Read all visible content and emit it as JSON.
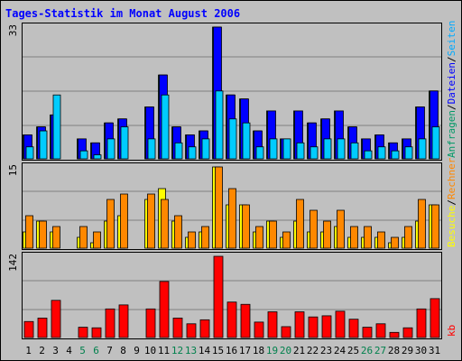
{
  "chart_data": {
    "type": "bar",
    "title": "Tages-Statistik im Monat August 2006",
    "days": [
      "1",
      "2",
      "3",
      "4",
      "5",
      "6",
      "7",
      "8",
      "9",
      "10",
      "11",
      "12",
      "13",
      "14",
      "15",
      "16",
      "17",
      "18",
      "19",
      "20",
      "21",
      "22",
      "23",
      "24",
      "25",
      "26",
      "27",
      "28",
      "29",
      "30",
      "31"
    ],
    "weekend_days": [
      "5",
      "6",
      "12",
      "13",
      "19",
      "20",
      "26",
      "27"
    ],
    "panels": [
      {
        "id": "top",
        "ymax_label": "33",
        "ymax": 33,
        "series": [
          {
            "name": "Anfragen",
            "color": "#006633",
            "values": [
              6,
              8,
              11,
              0,
              5,
              4,
              9,
              10,
              0,
              13,
              21,
              8,
              6,
              7,
              33,
              16,
              15,
              7,
              12,
              5,
              12,
              9,
              10,
              12,
              8,
              5,
              6,
              4,
              5,
              13,
              17
            ]
          },
          {
            "name": "Dateien",
            "color": "#0000ff",
            "values": [
              6,
              8,
              11,
              0,
              5,
              4,
              9,
              10,
              0,
              13,
              21,
              8,
              6,
              7,
              33,
              16,
              15,
              7,
              12,
              5,
              12,
              9,
              10,
              12,
              8,
              5,
              6,
              4,
              5,
              13,
              17
            ]
          },
          {
            "name": "Seiten",
            "color": "#00ccff",
            "values": [
              3,
              7,
              16,
              0,
              2,
              1,
              5,
              8,
              0,
              5,
              16,
              4,
              3,
              5,
              17,
              10,
              9,
              3,
              5,
              5,
              4,
              3,
              5,
              5,
              4,
              2,
              3,
              2,
              3,
              5,
              8
            ]
          }
        ],
        "legend": [
          {
            "text": "Anfragen",
            "color": "#009966"
          },
          {
            "text": "/",
            "color": "#000000"
          },
          {
            "text": "Dateien",
            "color": "#0000ff"
          },
          {
            "text": "/",
            "color": "#000000"
          },
          {
            "text": "Seiten",
            "color": "#00aaff"
          }
        ]
      },
      {
        "id": "middle",
        "ymax_label": "15",
        "ymax": 15,
        "series": [
          {
            "name": "Besuche",
            "color": "#ffff00",
            "values": [
              3,
              5,
              3,
              0,
              2,
              1,
              5,
              6,
              0,
              9,
              11,
              5,
              2,
              3,
              15,
              8,
              8,
              3,
              5,
              2,
              5,
              3,
              3,
              4,
              2,
              2,
              2,
              1,
              2,
              5,
              8
            ]
          },
          {
            "name": "Rechner",
            "color": "#ff8800",
            "values": [
              6,
              5,
              4,
              0,
              4,
              3,
              9,
              10,
              0,
              10,
              9,
              6,
              3,
              4,
              15,
              11,
              8,
              4,
              5,
              3,
              9,
              7,
              5,
              7,
              4,
              4,
              3,
              2,
              4,
              9,
              8
            ]
          }
        ],
        "legend": [
          {
            "text": "Besuche",
            "color": "#ffff00"
          },
          {
            "text": "/",
            "color": "#000000"
          },
          {
            "text": "Rechner",
            "color": "#ff8800"
          }
        ]
      },
      {
        "id": "bottom",
        "ymax_label": "142",
        "ymax": 142,
        "series": [
          {
            "name": "kb",
            "color": "#ff0000",
            "values": [
              28,
              34,
              65,
              0,
              18,
              17,
              50,
              57,
              0,
              50,
              98,
              34,
              24,
              31,
              142,
              62,
              58,
              27,
              45,
              19,
              45,
              36,
              38,
              46,
              32,
              18,
              24,
              9,
              17,
              50,
              68
            ]
          }
        ],
        "legend": [
          {
            "text": "kb",
            "color": "#ff0000"
          }
        ]
      }
    ],
    "colors": {
      "background": "#c0c0c0",
      "frame_border": "#000000",
      "grid": "#808080",
      "title": "#0000ff",
      "day_label": "#000000",
      "weekend_label": "#00804c"
    }
  }
}
